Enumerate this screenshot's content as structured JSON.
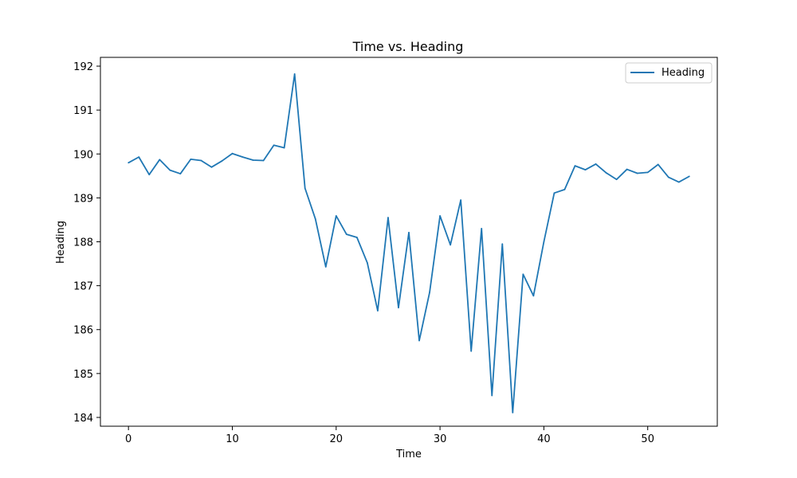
{
  "chart_data": {
    "type": "line",
    "title": "Time vs. Heading",
    "xlabel": "Time",
    "ylabel": "Heading",
    "xlim": [
      -2.7,
      56.7
    ],
    "ylim": [
      183.8,
      192.2
    ],
    "xticks": [
      0,
      10,
      20,
      30,
      40,
      50
    ],
    "yticks": [
      184,
      185,
      186,
      187,
      188,
      189,
      190,
      191,
      192
    ],
    "grid": false,
    "legend_position": "top-right",
    "series": [
      {
        "name": "Heading",
        "color": "#1f77b4",
        "x": [
          0,
          1,
          2,
          3,
          4,
          5,
          6,
          7,
          8,
          9,
          10,
          11,
          12,
          13,
          14,
          15,
          16,
          17,
          18,
          19,
          20,
          21,
          22,
          23,
          24,
          25,
          26,
          27,
          28,
          29,
          30,
          31,
          32,
          33,
          34,
          35,
          36,
          37,
          38,
          39,
          40,
          41,
          42,
          43,
          44,
          45,
          46,
          47,
          48,
          49,
          50,
          51,
          52,
          53,
          54
        ],
        "values": [
          189.8,
          189.93,
          189.53,
          189.87,
          189.63,
          189.55,
          189.88,
          189.85,
          189.7,
          189.84,
          190.01,
          189.93,
          189.86,
          189.85,
          190.2,
          190.14,
          191.82,
          189.22,
          188.52,
          187.43,
          188.59,
          188.17,
          188.1,
          187.52,
          186.43,
          188.55,
          186.5,
          188.21,
          185.75,
          186.85,
          188.59,
          187.93,
          188.95,
          185.51,
          188.3,
          184.5,
          187.95,
          184.11,
          187.26,
          186.77,
          188.0,
          189.11,
          189.19,
          189.73,
          189.64,
          189.77,
          189.57,
          189.42,
          189.65,
          189.56,
          189.58,
          189.76,
          189.47,
          189.36,
          189.49
        ]
      }
    ]
  }
}
